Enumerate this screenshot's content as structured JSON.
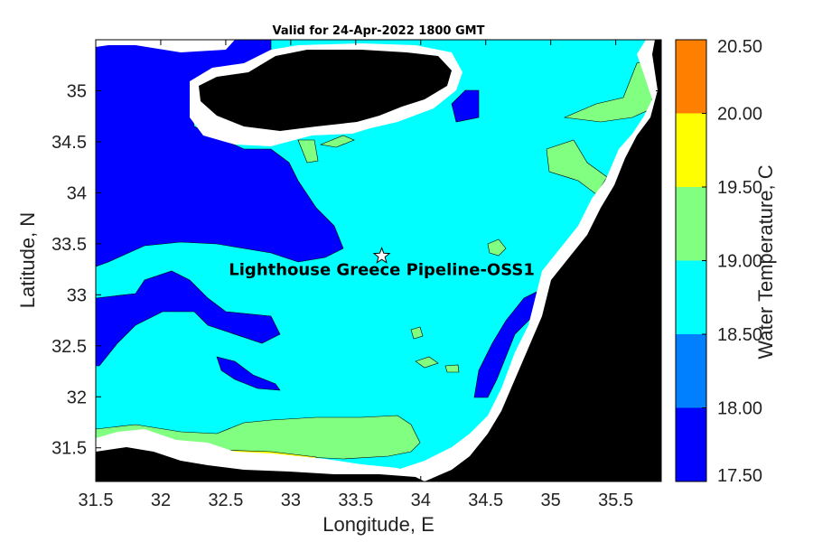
{
  "chart_data": {
    "type": "heatmap",
    "title": "Valid for 24-Apr-2022 1800 GMT",
    "xlabel": "Longitude, E",
    "ylabel": "Latitude, N",
    "xlim": [
      31.5,
      35.85
    ],
    "ylim": [
      31.17,
      35.5
    ],
    "x_ticks": [
      "31.5",
      "32",
      "32.5",
      "33",
      "33.5",
      "34",
      "34.5",
      "35",
      "35.5"
    ],
    "x_tick_values": [
      31.5,
      32,
      32.5,
      33,
      33.5,
      34,
      34.5,
      35,
      35.5
    ],
    "y_ticks": [
      "31.5",
      "32",
      "32.5",
      "33",
      "33.5",
      "34",
      "34.5",
      "35"
    ],
    "y_tick_values": [
      31.5,
      32,
      32.5,
      33,
      33.5,
      34,
      34.5,
      35
    ],
    "colorbar": {
      "label": "Water Temperature, C",
      "levels": [
        "17.50",
        "18.00",
        "18.50",
        "19.00",
        "19.50",
        "20.00",
        "20.50"
      ],
      "colors": [
        "#0000ff",
        "#0080ff",
        "#00ffff",
        "#80ff80",
        "#ffff00",
        "#ff8000"
      ]
    },
    "marker": {
      "symbol": "star",
      "lon": 33.7,
      "lat": 33.38,
      "label": "Lighthouse Greece Pipeline-OSS1"
    },
    "colors": {
      "land": "#000000",
      "nodata": "#ffffff",
      "deep_blue": "#0000ff",
      "cyan": "#00ffff",
      "green": "#80ff80",
      "yellow": "#ffff00",
      "orange": "#ff8000"
    }
  }
}
